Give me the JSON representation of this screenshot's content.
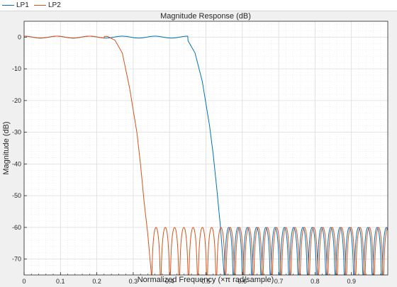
{
  "legend": {
    "items": [
      {
        "label": "LP1",
        "color": "#0072bd"
      },
      {
        "label": "LP2",
        "color": "#d95319"
      }
    ]
  },
  "chart_data": {
    "type": "line",
    "title": "Magnitude Response (dB)",
    "xlabel": "Normalized Frequency (×π rad/sample)",
    "ylabel": "Magnitude (dB)",
    "xlim": [
      0,
      1
    ],
    "ylim": [
      -75,
      5
    ],
    "x_ticks": [
      "0",
      "0.1",
      "0.2",
      "0.3",
      "0.4",
      "0.5",
      "0.6",
      "0.7",
      "0.8",
      "0.9"
    ],
    "y_ticks": [
      "0",
      "-10",
      "-20",
      "-30",
      "-40",
      "-50",
      "-60",
      "-70"
    ],
    "grid": true,
    "background": "#ffffff",
    "series": [
      {
        "name": "LP1",
        "color": "#0072bd",
        "passband_edge": 0.45,
        "stopband_edge": 0.55,
        "passband_ripple_db": 0.5,
        "stopband_level_db": -60,
        "x": [
          0,
          0.05,
          0.1,
          0.15,
          0.2,
          0.25,
          0.3,
          0.35,
          0.4,
          0.43,
          0.45,
          0.47,
          0.49,
          0.51,
          0.52,
          0.53,
          0.54,
          0.55
        ],
        "y": [
          0.3,
          -0.3,
          0.3,
          -0.3,
          0.3,
          -0.3,
          0.3,
          -0.3,
          0.3,
          0.3,
          -1,
          -5,
          -14,
          -28,
          -37,
          -48,
          -60,
          -75
        ]
      },
      {
        "name": "LP2",
        "color": "#d95319",
        "passband_edge": 0.22,
        "stopband_edge": 0.35,
        "passband_ripple_db": 0.5,
        "stopband_level_db": -60,
        "x": [
          0,
          0.05,
          0.1,
          0.15,
          0.2,
          0.23,
          0.25,
          0.27,
          0.29,
          0.31,
          0.32,
          0.33,
          0.34,
          0.35
        ],
        "y": [
          0.3,
          -0.3,
          0.3,
          -0.3,
          0.3,
          0.2,
          -1,
          -5,
          -16,
          -30,
          -40,
          -52,
          -62,
          -75
        ]
      }
    ]
  }
}
